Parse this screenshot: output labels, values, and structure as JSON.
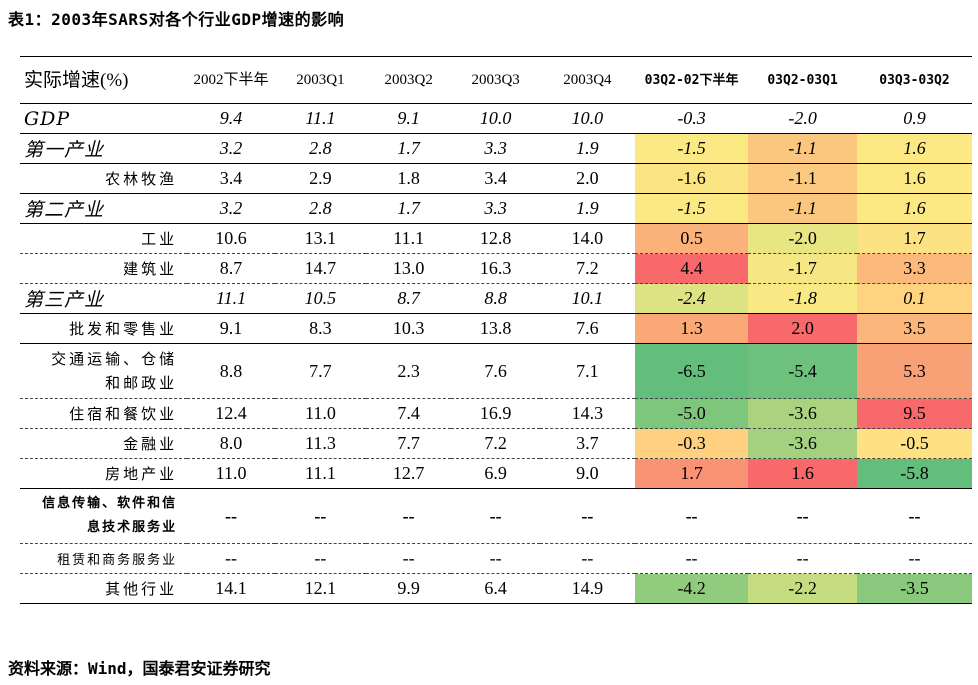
{
  "title": "表1：2003年SARS对各个行业GDP增速的影响",
  "table": {
    "header": [
      "实际增速(%)",
      "2002下半年",
      "2003Q1",
      "2003Q2",
      "2003Q3",
      "2003Q4",
      "03Q2-02下半年",
      "03Q2-03Q1",
      "03Q3-03Q2"
    ],
    "rows": [
      [
        "GDP",
        "9.4",
        "11.1",
        "9.1",
        "10.0",
        "10.0",
        "-0.3",
        "-2.0",
        "0.9"
      ],
      [
        "第一产业",
        "3.2",
        "2.8",
        "1.7",
        "3.3",
        "1.9",
        "-1.5",
        "-1.1",
        "1.6"
      ],
      [
        "农林牧渔",
        "3.4",
        "2.9",
        "1.8",
        "3.4",
        "2.0",
        "-1.6",
        "-1.1",
        "1.6"
      ],
      [
        "第二产业",
        "3.2",
        "2.8",
        "1.7",
        "3.3",
        "1.9",
        "-1.5",
        "-1.1",
        "1.6"
      ],
      [
        "工业",
        "10.6",
        "13.1",
        "11.1",
        "12.8",
        "14.0",
        "0.5",
        "-2.0",
        "1.7"
      ],
      [
        "建筑业",
        "8.7",
        "14.7",
        "13.0",
        "16.3",
        "7.2",
        "4.4",
        "-1.7",
        "3.3"
      ],
      [
        "第三产业",
        "11.1",
        "10.5",
        "8.7",
        "8.8",
        "10.1",
        "-2.4",
        "-1.8",
        "0.1"
      ],
      [
        "批发和零售业",
        "9.1",
        "8.3",
        "10.3",
        "13.8",
        "7.6",
        "1.3",
        "2.0",
        "3.5"
      ],
      [
        "交通运输、仓储和邮政业",
        "8.8",
        "7.7",
        "2.3",
        "7.6",
        "7.1",
        "-6.5",
        "-5.4",
        "5.3"
      ],
      [
        "住宿和餐饮业",
        "12.4",
        "11.0",
        "7.4",
        "16.9",
        "14.3",
        "-5.0",
        "-3.6",
        "9.5"
      ],
      [
        "金融业",
        "8.0",
        "11.3",
        "7.7",
        "7.2",
        "3.7",
        "-0.3",
        "-3.6",
        "-0.5"
      ],
      [
        "房地产业",
        "11.0",
        "11.1",
        "12.7",
        "6.9",
        "9.0",
        "1.7",
        "1.6",
        "-5.8"
      ],
      [
        "信息传输、软件和信息技术服务业",
        "--",
        "--",
        "--",
        "--",
        "--",
        "--",
        "--",
        "--"
      ],
      [
        "租赁和商务服务业",
        "--",
        "--",
        "--",
        "--",
        "--",
        "--",
        "--",
        "--"
      ],
      [
        "其他行业",
        "14.1",
        "12.1",
        "9.9",
        "6.4",
        "14.9",
        "-4.2",
        "-2.2",
        "-3.5"
      ]
    ]
  },
  "source": "资料来源：Wind，国泰君安证券研究"
}
